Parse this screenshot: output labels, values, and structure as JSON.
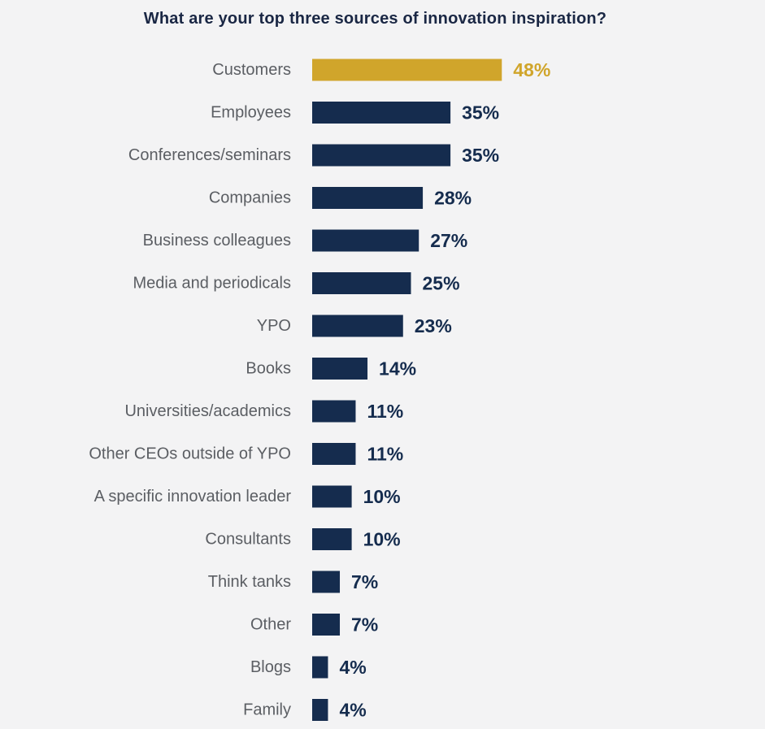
{
  "chart_data": {
    "type": "bar",
    "orientation": "horizontal",
    "title": "What are your top three sources of innovation inspiration?",
    "xlabel": "",
    "ylabel": "",
    "categories": [
      "Customers",
      "Employees",
      "Conferences/seminars",
      "Companies",
      "Business colleagues",
      "Media and periodicals",
      "YPO",
      "Books",
      "Universities/academics",
      "Other CEOs outside of YPO",
      "A specific innovation leader",
      "Consultants",
      "Think tanks",
      "Other",
      "Blogs",
      "Family"
    ],
    "values": [
      48,
      35,
      35,
      28,
      27,
      25,
      23,
      14,
      11,
      11,
      10,
      10,
      7,
      7,
      4,
      4
    ],
    "value_labels": [
      "48%",
      "35%",
      "35%",
      "28%",
      "27%",
      "25%",
      "23%",
      "14%",
      "11%",
      "11%",
      "10%",
      "10%",
      "7%",
      "7%",
      "4%",
      "4%"
    ],
    "highlight_index": 0,
    "grid": false,
    "legend": "none"
  },
  "colors": {
    "background": "#f3f3f4",
    "bar": "#152c4e",
    "highlight": "#d0a52b",
    "category_text": "#5b5e63",
    "title_text": "#1a2744"
  }
}
